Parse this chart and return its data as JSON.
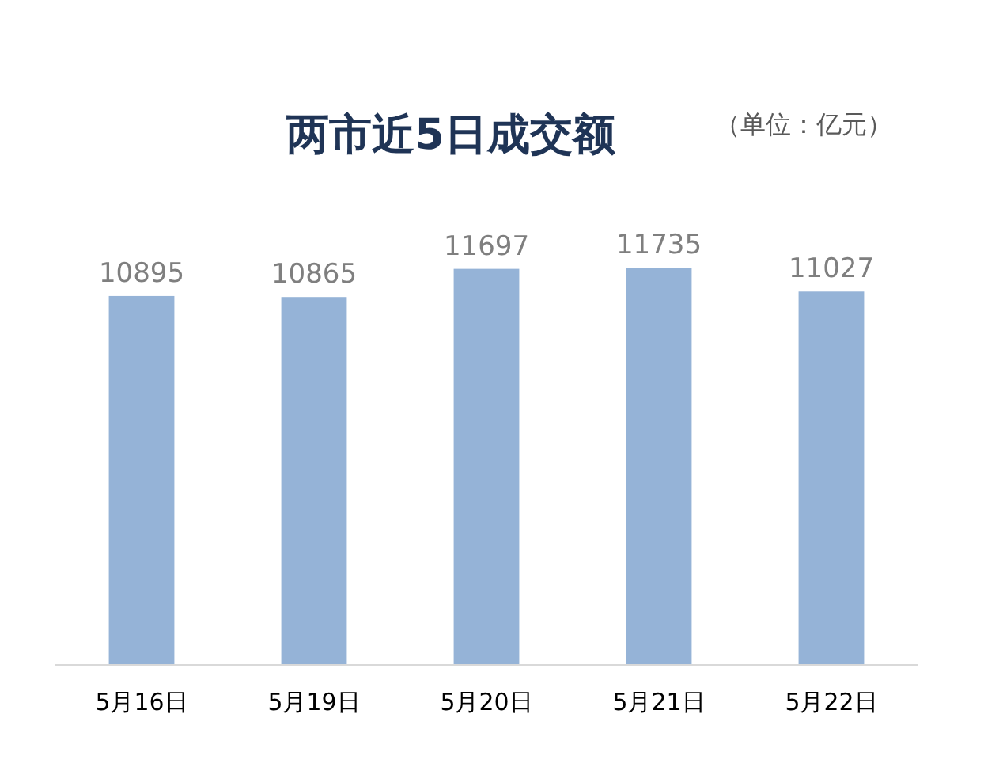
{
  "chart_data": {
    "type": "bar",
    "title": "两市近5日成交额",
    "subtitle": "（单位：亿元）",
    "categories": [
      "5月16日",
      "5月19日",
      "5月20日",
      "5月21日",
      "5月22日"
    ],
    "values": [
      10895,
      10865,
      11697,
      11735,
      11027
    ],
    "color": "#95b3d7",
    "data_labels": true,
    "tick_labels": "x"
  }
}
